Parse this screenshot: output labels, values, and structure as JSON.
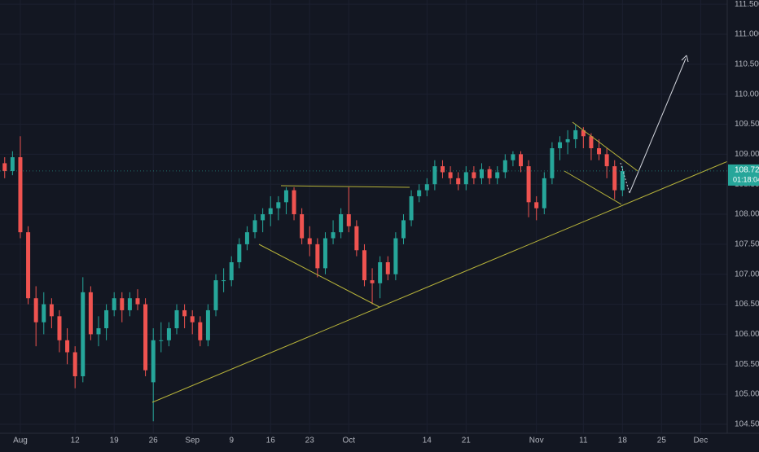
{
  "chart_data": {
    "type": "candlestick",
    "x": [
      -2,
      -1,
      0,
      1,
      2,
      3,
      4,
      5,
      6,
      7,
      8,
      9,
      10,
      11,
      12,
      13,
      14,
      15,
      16,
      17,
      18,
      19,
      20,
      21,
      22,
      23,
      24,
      25,
      26,
      27,
      28,
      29,
      30,
      31,
      32,
      33,
      34,
      35,
      36,
      37,
      38,
      39,
      40,
      41,
      42,
      43,
      44,
      45,
      46,
      47,
      48,
      49,
      50,
      51,
      52,
      53,
      54,
      55,
      56,
      57,
      58,
      59,
      60,
      61,
      62,
      63,
      64,
      65,
      66,
      67,
      68,
      69,
      70,
      71,
      72,
      73,
      74,
      75,
      76,
      77
    ],
    "open": [
      108.85,
      108.72,
      108.95,
      107.7,
      106.6,
      106.2,
      106.5,
      106.3,
      105.9,
      105.7,
      105.3,
      106.7,
      106.0,
      106.1,
      106.4,
      106.6,
      106.4,
      106.6,
      106.5,
      105.2,
      105.9,
      105.9,
      106.1,
      106.4,
      106.3,
      106.2,
      105.9,
      106.4,
      106.9,
      106.9,
      107.2,
      107.5,
      107.7,
      107.9,
      108.0,
      108.1,
      108.2,
      108.4,
      108.0,
      107.6,
      107.5,
      107.1,
      107.6,
      107.7,
      108.0,
      107.8,
      107.4,
      106.9,
      106.85,
      107.2,
      107.0,
      107.6,
      107.9,
      108.3,
      108.4,
      108.5,
      108.8,
      108.7,
      108.6,
      108.5,
      108.7,
      108.6,
      108.75,
      108.6,
      108.7,
      108.9,
      109.0,
      108.8,
      108.2,
      108.1,
      108.6,
      109.1,
      109.2,
      109.25,
      109.4,
      109.3,
      109.1,
      109.0,
      108.8,
      108.4
    ],
    "high": [
      108.95,
      109.05,
      109.3,
      107.8,
      106.8,
      106.7,
      106.6,
      106.4,
      106.1,
      105.8,
      106.95,
      106.8,
      106.3,
      106.5,
      106.7,
      106.7,
      106.7,
      106.75,
      106.6,
      106.1,
      106.2,
      106.2,
      106.5,
      106.5,
      106.4,
      106.3,
      106.5,
      107.0,
      107.1,
      107.3,
      107.6,
      107.8,
      108.0,
      108.1,
      108.3,
      108.3,
      108.45,
      108.45,
      108.1,
      107.8,
      107.6,
      107.7,
      107.9,
      108.1,
      108.45,
      107.9,
      107.5,
      107.1,
      107.3,
      107.3,
      107.7,
      108.0,
      108.4,
      108.5,
      108.6,
      108.9,
      108.9,
      108.8,
      108.7,
      108.8,
      108.8,
      108.85,
      108.8,
      108.8,
      109.0,
      109.05,
      109.05,
      108.9,
      108.3,
      108.7,
      109.2,
      109.3,
      109.4,
      109.5,
      109.45,
      109.35,
      109.25,
      109.1,
      108.9,
      108.8
    ],
    "low": [
      108.6,
      108.65,
      107.6,
      106.5,
      105.8,
      106.0,
      106.1,
      105.7,
      105.5,
      105.1,
      105.2,
      105.9,
      105.8,
      105.9,
      106.3,
      106.2,
      106.3,
      106.4,
      105.3,
      104.55,
      105.7,
      105.8,
      106.0,
      106.1,
      106.0,
      105.8,
      105.8,
      106.3,
      106.7,
      106.8,
      107.1,
      107.4,
      107.6,
      107.7,
      107.8,
      107.9,
      108.0,
      107.9,
      107.5,
      107.3,
      106.95,
      107.0,
      107.5,
      107.6,
      107.7,
      107.3,
      106.8,
      106.5,
      106.6,
      106.9,
      106.9,
      107.5,
      107.8,
      108.2,
      108.3,
      108.4,
      108.6,
      108.5,
      108.4,
      108.4,
      108.5,
      108.5,
      108.5,
      108.5,
      108.6,
      108.8,
      108.7,
      107.95,
      107.9,
      108.0,
      108.5,
      108.9,
      109.0,
      109.1,
      109.1,
      108.9,
      108.9,
      108.6,
      108.25,
      108.3
    ],
    "close": [
      108.72,
      108.95,
      107.7,
      106.6,
      106.2,
      106.5,
      106.3,
      105.9,
      105.7,
      105.3,
      106.7,
      106.0,
      106.1,
      106.4,
      106.6,
      106.4,
      106.6,
      106.5,
      105.4,
      105.9,
      105.9,
      106.1,
      106.4,
      106.3,
      106.2,
      105.9,
      106.4,
      106.9,
      106.9,
      107.2,
      107.5,
      107.7,
      107.9,
      108.0,
      108.1,
      108.2,
      108.4,
      108.0,
      107.6,
      107.5,
      107.1,
      107.6,
      107.7,
      108.0,
      107.8,
      107.4,
      106.9,
      106.85,
      107.2,
      107.0,
      107.6,
      107.9,
      108.3,
      108.4,
      108.5,
      108.8,
      108.7,
      108.6,
      108.5,
      108.7,
      108.6,
      108.75,
      108.6,
      108.7,
      108.9,
      109.0,
      108.8,
      108.2,
      108.1,
      108.6,
      109.1,
      109.2,
      109.25,
      109.4,
      109.3,
      109.1,
      109.0,
      108.8,
      108.4,
      108.72
    ],
    "up_color": "#26a69a",
    "down_color": "#ef5350",
    "xlim": [
      -2.6,
      90.4
    ],
    "xticks": [
      {
        "value": 0,
        "label": "Aug"
      },
      {
        "value": 7,
        "label": "12"
      },
      {
        "value": 12,
        "label": "19"
      },
      {
        "value": 17,
        "label": "26"
      },
      {
        "value": 22,
        "label": "Sep"
      },
      {
        "value": 27,
        "label": "9"
      },
      {
        "value": 32,
        "label": "16"
      },
      {
        "value": 37,
        "label": "23"
      },
      {
        "value": 42,
        "label": "Oct"
      },
      {
        "value": 52,
        "label": "14"
      },
      {
        "value": 57,
        "label": "21"
      },
      {
        "value": 66,
        "label": "Nov"
      },
      {
        "value": 72,
        "label": "11"
      },
      {
        "value": 77,
        "label": "18"
      },
      {
        "value": 82,
        "label": "25"
      },
      {
        "value": 87,
        "label": "Dec"
      }
    ],
    "ylim": [
      104.35,
      111.57
    ],
    "yticks": [
      {
        "value": 104.5,
        "label": "104.500"
      },
      {
        "value": 105,
        "label": "105.000"
      },
      {
        "value": 105.5,
        "label": "105.500"
      },
      {
        "value": 106,
        "label": "106.000"
      },
      {
        "value": 106.5,
        "label": "106.500"
      },
      {
        "value": 107,
        "label": "107.000"
      },
      {
        "value": 107.5,
        "label": "107.500"
      },
      {
        "value": 108,
        "label": "108.000"
      },
      {
        "value": 108.5,
        "label": "108.500"
      },
      {
        "value": 109,
        "label": "109.000"
      },
      {
        "value": 109.5,
        "label": "109.500"
      },
      {
        "value": 110,
        "label": "110.000"
      },
      {
        "value": 110.5,
        "label": "110.500"
      },
      {
        "value": 111,
        "label": "111.000"
      },
      {
        "value": 111.5,
        "label": "111.500"
      }
    ],
    "grid": true,
    "last_price": 108.721,
    "countdown": "01:18:04"
  }
}
